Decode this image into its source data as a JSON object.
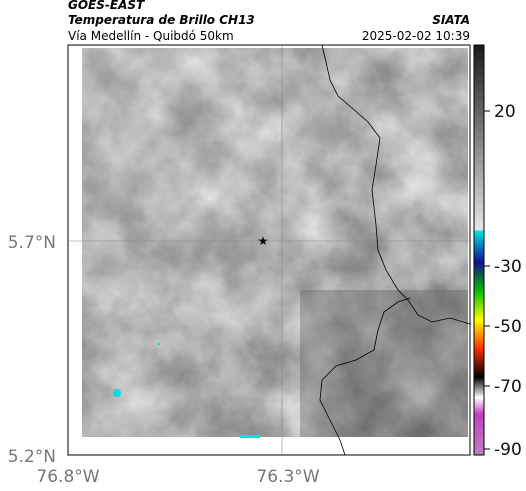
{
  "header": {
    "source": "GOES-EAST",
    "title": "Temperatura de Brillo CH13",
    "org": "SIATA",
    "subtitle": "Vía Medellín - Quibdó 50km",
    "datetime": "2025-02-02 10:39"
  },
  "map": {
    "lat_labels": [
      "5.7°N",
      "5.2°N"
    ],
    "lon_labels": [
      "76.8°W",
      "76.3°W"
    ]
  },
  "colorbar": {
    "ticks": [
      20,
      -30,
      -50,
      -70,
      -90
    ]
  }
}
